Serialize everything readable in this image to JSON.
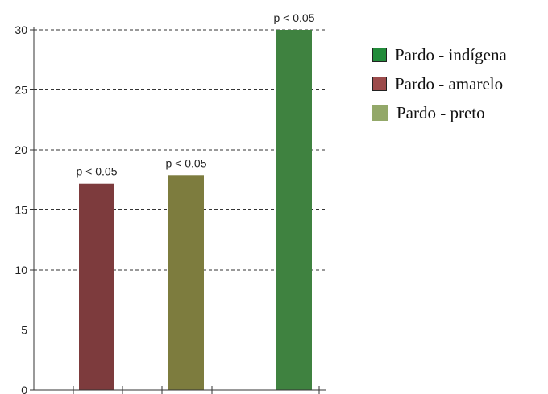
{
  "chart_data": {
    "type": "bar",
    "title": "",
    "xlabel": "",
    "ylabel": "",
    "ylim": [
      0,
      30
    ],
    "yticks": [
      0,
      5,
      10,
      15,
      20,
      25,
      30
    ],
    "grid": true,
    "legend_position": "right",
    "series": [
      {
        "name": "Pardo - amarelo",
        "value": 17.2,
        "color": "#7d3b3d",
        "label": "p < 0.05"
      },
      {
        "name": "Pardo - preto",
        "value": 17.9,
        "color": "#7d7c3e",
        "label": "p < 0.05"
      },
      {
        "name": "Pardo - indígena",
        "value": 30.0,
        "color": "#3f8240",
        "label": "p < 0.05"
      }
    ]
  },
  "legend": {
    "items": [
      {
        "label": "Pardo - indígena",
        "color": "#228b3a",
        "icon": "square-swatch"
      },
      {
        "label": "Pardo - amarelo",
        "color": "#9c4b4b",
        "icon": "square-swatch"
      },
      {
        "label": "Pardo - preto",
        "color": "#93a869",
        "icon": "square-swatch"
      }
    ]
  }
}
